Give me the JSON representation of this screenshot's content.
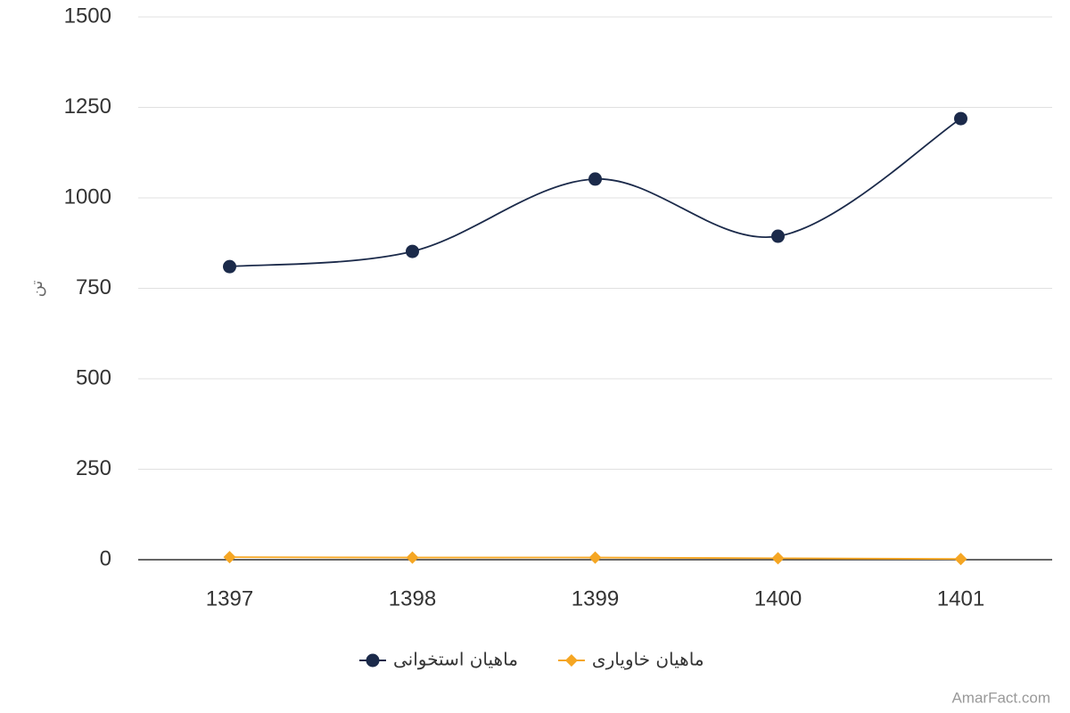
{
  "chart_data": {
    "type": "line",
    "y_label": "تن",
    "credit": "AmarFact.com",
    "categories": [
      "1397",
      "1398",
      "1399",
      "1400",
      "1401"
    ],
    "series": [
      {
        "name": "ماهیان استخوانی",
        "color": "#1b2a4a",
        "marker": "circle",
        "values": [
          810,
          852,
          1052,
          894,
          1219
        ]
      },
      {
        "name": "ماهیان خاویاری",
        "color": "#f5a623",
        "marker": "diamond",
        "values": [
          7,
          6,
          6,
          4,
          2
        ]
      }
    ],
    "ylim": [
      0,
      1500
    ],
    "yticks": [
      0,
      250,
      500,
      750,
      1000,
      1250,
      1500
    ],
    "grid": true,
    "legend": "bottom"
  }
}
